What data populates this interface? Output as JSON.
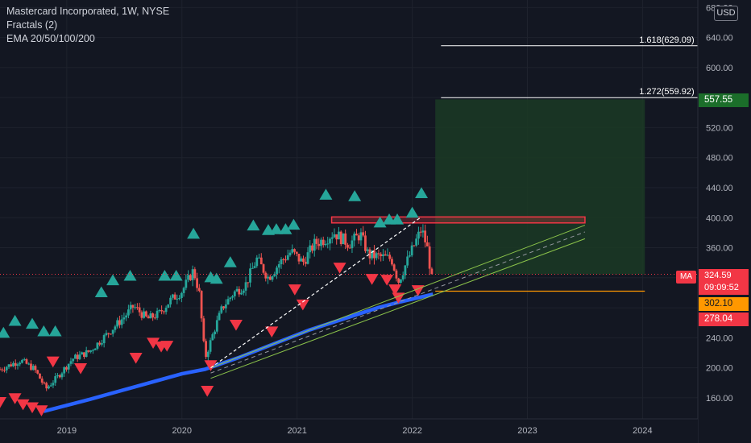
{
  "legend": {
    "symbol": "Mastercard Incorporated, 1W, NYSE",
    "indicator1": "Fractals (2)",
    "indicator2": "EMA 20/50/100/200"
  },
  "currency": "USD",
  "ma_tag": "MA",
  "price_box": {
    "price": "324.59",
    "countdown": "09:09:52"
  },
  "price_tags": {
    "target": "557.55",
    "stop": "302.10",
    "ema": "278.04"
  },
  "fib_levels": [
    {
      "label": "1.618(629.09)",
      "value": 629.09
    },
    {
      "label": "1.272(559.92)",
      "value": 559.92
    }
  ],
  "colors": {
    "background": "#131722",
    "up": "#26a69a",
    "down": "#ef5350",
    "ema": "#2962ff",
    "fractal_up": "#26a69a",
    "fractal_down": "#f23645",
    "position_profit": "#1b3a24",
    "resistance": "#f23645",
    "channel": "#8bc34a",
    "stop_line": "#ff9800"
  },
  "chart_data": {
    "type": "candlestick",
    "x_ticks": [
      "2019",
      "2020",
      "2021",
      "2022",
      "2023",
      "2024"
    ],
    "x_tick_years": [
      2019,
      2020,
      2021,
      2022,
      2023,
      2024
    ],
    "y_ticks": [
      "160.00",
      "200.00",
      "240.00",
      "280.00",
      "320.00",
      "360.00",
      "400.00",
      "440.00",
      "480.00",
      "520.00",
      "560.00",
      "600.00",
      "640.00",
      "680.00"
    ],
    "y_tick_values": [
      160,
      200,
      240,
      280,
      320,
      360,
      400,
      440,
      480,
      520,
      560,
      600,
      640,
      680
    ],
    "ylim": [
      132,
      690
    ],
    "xlim": [
      2018.42,
      2024.48
    ],
    "close_path": [
      [
        2018.42,
        198
      ],
      [
        2018.6,
        210
      ],
      [
        2018.72,
        198
      ],
      [
        2018.82,
        172
      ],
      [
        2018.92,
        188
      ],
      [
        2019.05,
        212
      ],
      [
        2019.2,
        222
      ],
      [
        2019.35,
        245
      ],
      [
        2019.5,
        268
      ],
      [
        2019.58,
        282
      ],
      [
        2019.7,
        265
      ],
      [
        2019.8,
        272
      ],
      [
        2019.9,
        290
      ],
      [
        2020.0,
        302
      ],
      [
        2020.1,
        330
      ],
      [
        2020.15,
        300
      ],
      [
        2020.2,
        212
      ],
      [
        2020.28,
        250
      ],
      [
        2020.35,
        280
      ],
      [
        2020.45,
        300
      ],
      [
        2020.55,
        310
      ],
      [
        2020.65,
        345
      ],
      [
        2020.75,
        320
      ],
      [
        2020.85,
        340
      ],
      [
        2020.95,
        355
      ],
      [
        2021.05,
        340
      ],
      [
        2021.15,
        365
      ],
      [
        2021.25,
        372
      ],
      [
        2021.32,
        380
      ],
      [
        2021.45,
        365
      ],
      [
        2021.55,
        378
      ],
      [
        2021.62,
        350
      ],
      [
        2021.72,
        348
      ],
      [
        2021.82,
        345
      ],
      [
        2021.88,
        315
      ],
      [
        2021.95,
        340
      ],
      [
        2022.03,
        368
      ],
      [
        2022.08,
        385
      ],
      [
        2022.13,
        360
      ],
      [
        2022.17,
        318
      ]
    ],
    "ema_blue": [
      [
        2018.8,
        142
      ],
      [
        2019.2,
        158
      ],
      [
        2019.6,
        175
      ],
      [
        2020.0,
        192
      ],
      [
        2020.2,
        198
      ],
      [
        2020.5,
        214
      ],
      [
        2020.8,
        232
      ],
      [
        2021.1,
        250
      ],
      [
        2021.4,
        265
      ],
      [
        2021.7,
        280
      ],
      [
        2021.9,
        288
      ],
      [
        2022.18,
        298
      ]
    ],
    "fractals_up": [
      [
        2018.45,
        246
      ],
      [
        2018.55,
        262
      ],
      [
        2018.7,
        258
      ],
      [
        2018.8,
        248
      ],
      [
        2018.9,
        248
      ],
      [
        2019.3,
        300
      ],
      [
        2019.4,
        316
      ],
      [
        2019.55,
        322
      ],
      [
        2019.85,
        322
      ],
      [
        2019.95,
        322
      ],
      [
        2020.1,
        378
      ],
      [
        2020.25,
        320
      ],
      [
        2020.3,
        318
      ],
      [
        2020.42,
        340
      ],
      [
        2020.62,
        389
      ],
      [
        2020.75,
        383
      ],
      [
        2020.82,
        384
      ],
      [
        2020.9,
        384
      ],
      [
        2020.97,
        390
      ],
      [
        2021.25,
        430
      ],
      [
        2021.5,
        428
      ],
      [
        2021.72,
        393
      ],
      [
        2021.8,
        397
      ],
      [
        2021.87,
        397
      ],
      [
        2022.0,
        406
      ],
      [
        2022.08,
        432
      ]
    ],
    "fractals_down": [
      [
        2018.42,
        155
      ],
      [
        2018.55,
        160
      ],
      [
        2018.62,
        152
      ],
      [
        2018.7,
        148
      ],
      [
        2018.78,
        144
      ],
      [
        2018.88,
        209
      ],
      [
        2019.12,
        200
      ],
      [
        2019.6,
        214
      ],
      [
        2019.75,
        234
      ],
      [
        2019.82,
        229
      ],
      [
        2019.87,
        230
      ],
      [
        2020.22,
        170
      ],
      [
        2020.25,
        204
      ],
      [
        2020.47,
        258
      ],
      [
        2020.78,
        249
      ],
      [
        2020.98,
        305
      ],
      [
        2021.05,
        285
      ],
      [
        2021.37,
        334
      ],
      [
        2021.65,
        319
      ],
      [
        2021.78,
        318
      ],
      [
        2021.85,
        305
      ],
      [
        2021.88,
        294
      ],
      [
        2022.05,
        304
      ]
    ],
    "fib_lines": [
      {
        "label": "1.618(629.09)",
        "value": 629.09
      },
      {
        "label": "1.272(559.92)",
        "value": 559.92
      }
    ],
    "position": {
      "entry": 324.59,
      "target": 557.55,
      "stop": 302.1,
      "start": 2022.2,
      "end": 2024.02
    },
    "resistance_zone": {
      "low": 393,
      "high": 401,
      "start": 2021.3,
      "end": 2023.5
    }
  }
}
